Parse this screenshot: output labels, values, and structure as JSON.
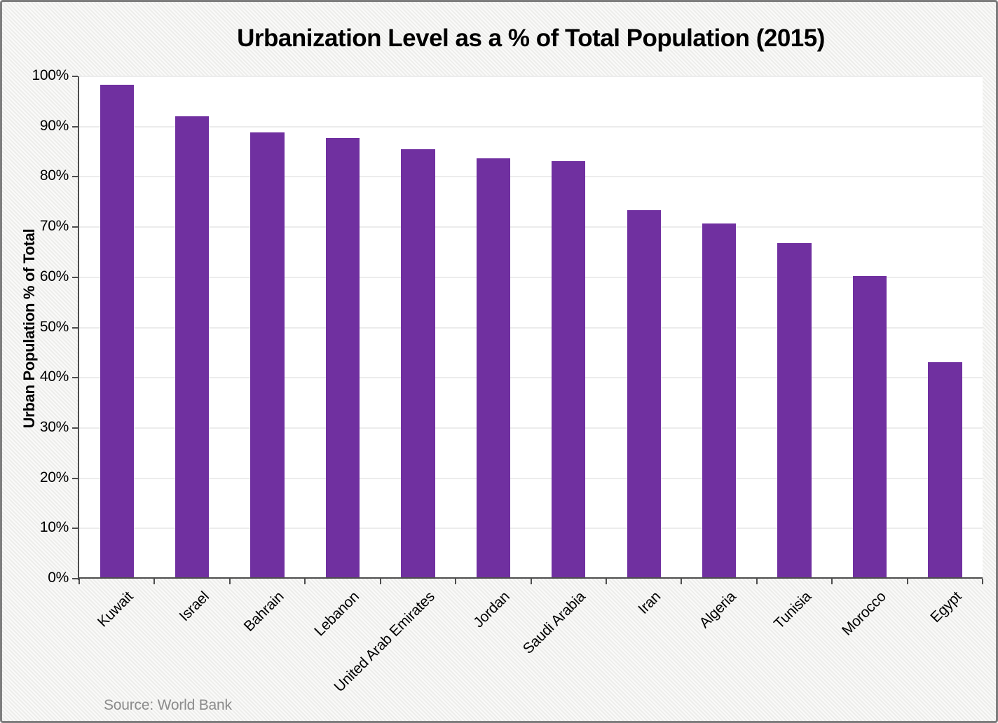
{
  "chart_data": {
    "type": "bar",
    "title": "Urbanization Level as a % of Total Population (2015)",
    "ylabel": "Urban Population % of Total",
    "xlabel": "",
    "categories": [
      "Kuwait",
      "Israel",
      "Bahrain",
      "Lebanon",
      "United Arab Emirates",
      "Jordan",
      "Saudi Arabia",
      "Iran",
      "Algeria",
      "Tunisia",
      "Morocco",
      "Egypt"
    ],
    "values": [
      98.3,
      92.1,
      88.8,
      87.7,
      85.5,
      83.7,
      83.1,
      73.4,
      70.7,
      66.8,
      60.2,
      43.1
    ],
    "ylim": [
      0,
      100
    ],
    "ytick_step": 10,
    "ytick_labels": [
      "0%",
      "10%",
      "20%",
      "30%",
      "40%",
      "50%",
      "60%",
      "70%",
      "80%",
      "90%",
      "100%"
    ],
    "grid": "horizontal",
    "legend": "none",
    "source": "Source: World Bank",
    "colors": {
      "bar": "#7030A0",
      "gridline": "#ececec",
      "axis": "#4d4d4d",
      "title_text": "#000000",
      "tick_text": "#000000",
      "source_text": "#8b8b8b",
      "plot_background": "#ffffff",
      "canvas_background": "#f3f3f1",
      "frame_border": "#7e7e7e"
    }
  }
}
